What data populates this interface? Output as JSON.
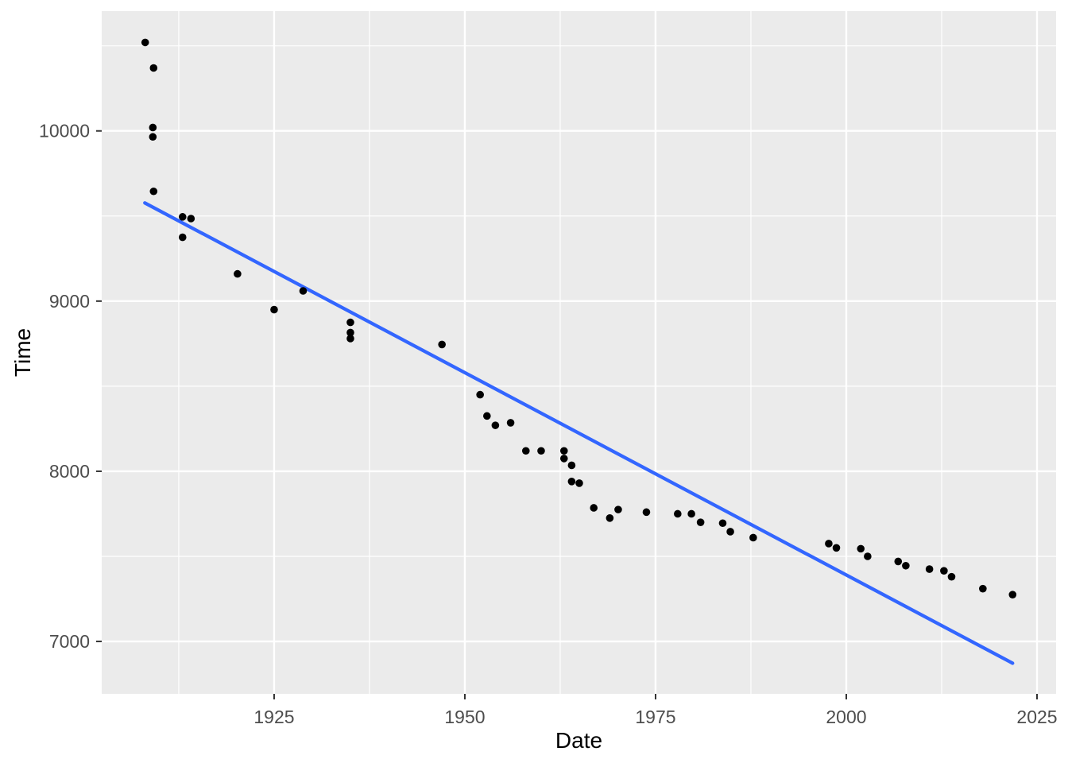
{
  "chart_data": {
    "type": "scatter",
    "title": "",
    "xlabel": "Date",
    "ylabel": "Time",
    "grid": true,
    "legend": "none",
    "x_domain": [
      1902.4,
      2027.5
    ],
    "y_domain": [
      6692,
      10704
    ],
    "x_ticks": [
      1925,
      1950,
      1975,
      2000,
      2025
    ],
    "x_tick_labels": [
      "1925",
      "1950",
      "1975",
      "2000",
      "2025"
    ],
    "y_ticks": [
      7000,
      8000,
      9000,
      10000
    ],
    "y_tick_labels": [
      "7000",
      "8000",
      "9000",
      "10000"
    ],
    "x_minor_ticks": [
      1912.5,
      1937.5,
      1962.5,
      1987.5,
      2012.5
    ],
    "y_minor_ticks": [
      7500,
      8500,
      9500,
      10500
    ],
    "points": [
      [
        1908.1,
        10520
      ],
      [
        1909.2,
        10370
      ],
      [
        1909.1,
        10020
      ],
      [
        1909.1,
        9965
      ],
      [
        1909.2,
        9645
      ],
      [
        1913.0,
        9495
      ],
      [
        1914.1,
        9485
      ],
      [
        1913.0,
        9375
      ],
      [
        1920.2,
        9160
      ],
      [
        1925.0,
        8950
      ],
      [
        1928.8,
        9060
      ],
      [
        1935.0,
        8875
      ],
      [
        1935.0,
        8815
      ],
      [
        1935.0,
        8780
      ],
      [
        1947.0,
        8745
      ],
      [
        1952.0,
        8450
      ],
      [
        1952.9,
        8325
      ],
      [
        1954.0,
        8270
      ],
      [
        1956.0,
        8285
      ],
      [
        1958.0,
        8120
      ],
      [
        1960.0,
        8120
      ],
      [
        1963.0,
        8120
      ],
      [
        1963.0,
        8075
      ],
      [
        1964.0,
        8035
      ],
      [
        1964.0,
        7940
      ],
      [
        1965.0,
        7930
      ],
      [
        1966.9,
        7785
      ],
      [
        1969.0,
        7725
      ],
      [
        1970.1,
        7775
      ],
      [
        1973.8,
        7760
      ],
      [
        1977.9,
        7750
      ],
      [
        1979.7,
        7750
      ],
      [
        1980.9,
        7700
      ],
      [
        1983.8,
        7695
      ],
      [
        1984.8,
        7645
      ],
      [
        1987.8,
        7610
      ],
      [
        1997.7,
        7575
      ],
      [
        1998.7,
        7550
      ],
      [
        2001.9,
        7545
      ],
      [
        2002.8,
        7500
      ],
      [
        2006.8,
        7470
      ],
      [
        2007.8,
        7445
      ],
      [
        2010.9,
        7425
      ],
      [
        2012.8,
        7415
      ],
      [
        2013.8,
        7380
      ],
      [
        2017.9,
        7310
      ],
      [
        2021.8,
        7275
      ]
    ],
    "trend_line": {
      "type": "linear",
      "x": [
        1908.05,
        2021.8
      ],
      "y": [
        9577,
        6872
      ]
    }
  },
  "colors": {
    "background": "#FFFFFF",
    "panel": "#EBEBEB",
    "grid": "#FFFFFF",
    "point": "#000000",
    "trend": "#3366FF",
    "tick_label": "#4D4D4D",
    "tick_mark": "#333333",
    "axis_title": "#000000"
  }
}
